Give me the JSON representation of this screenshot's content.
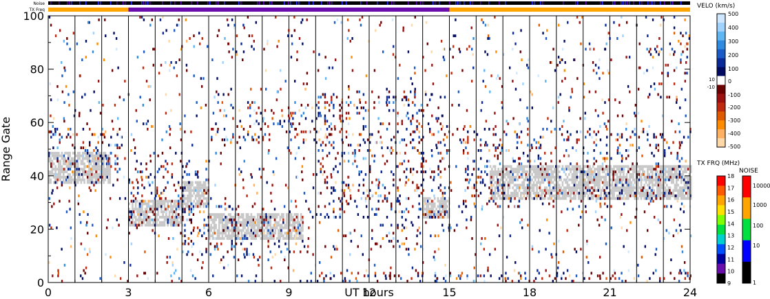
{
  "chart_data": {
    "type": "heatmap",
    "xlabel": "UT hours",
    "ylabel": "Range Gate",
    "xlim": [
      0,
      24
    ],
    "ylim": [
      0,
      100
    ],
    "x_ticks": [
      {
        "value": 0,
        "label": "0"
      },
      {
        "value": 3,
        "label": "3"
      },
      {
        "value": 6,
        "label": "6"
      },
      {
        "value": 9,
        "label": "9"
      },
      {
        "value": 12,
        "label": "12"
      },
      {
        "value": 15,
        "label": "15"
      },
      {
        "value": 18,
        "label": "18"
      },
      {
        "value": 21,
        "label": "21"
      },
      {
        "value": 24,
        "label": "24"
      }
    ],
    "y_ticks": [
      {
        "value": 0,
        "label": "0"
      },
      {
        "value": 20,
        "label": "20"
      },
      {
        "value": 40,
        "label": "40"
      },
      {
        "value": 60,
        "label": "60"
      },
      {
        "value": 80,
        "label": "80"
      },
      {
        "value": 100,
        "label": "100"
      }
    ],
    "scan_lines_ut": [
      1.0,
      2.0,
      3.0,
      4.0,
      5.0,
      6.0,
      7.0,
      8.0,
      9.0,
      10.0,
      11.0,
      12.0,
      13.0,
      14.0,
      15.0,
      16.0,
      17.0,
      18.0,
      19.0,
      20.0,
      21.0,
      22.0,
      23.0
    ],
    "strips": {
      "noise_label": "Noise",
      "txfreq_label": "TX Freq",
      "tx_freq_segments": [
        {
          "start": 0,
          "end": 3,
          "color": "#ffa500"
        },
        {
          "start": 3,
          "end": 15,
          "color": "#6a0dad"
        },
        {
          "start": 15,
          "end": 24,
          "color": "#ffa500"
        }
      ]
    },
    "ground_scatter_regions": [
      {
        "x0": 0,
        "x1": 2.3,
        "y0": 37,
        "y1": 49
      },
      {
        "x0": 3.0,
        "x1": 5.0,
        "y0": 21,
        "y1": 31
      },
      {
        "x0": 5.0,
        "x1": 6.0,
        "y0": 28,
        "y1": 38
      },
      {
        "x0": 6.0,
        "x1": 9.5,
        "y0": 16,
        "y1": 26
      },
      {
        "x0": 14.0,
        "x1": 15.0,
        "y0": 24,
        "y1": 32
      },
      {
        "x0": 16.5,
        "x1": 24,
        "y0": 31,
        "y1": 44
      }
    ],
    "echo_bands": [
      {
        "x0": 0,
        "x1": 2.8,
        "y0": 36,
        "y1": 58
      },
      {
        "x0": 3.0,
        "x1": 6.0,
        "y0": 21,
        "y1": 46
      },
      {
        "x0": 5.0,
        "x1": 9.5,
        "y0": 8,
        "y1": 29
      },
      {
        "x0": 6.0,
        "x1": 11.0,
        "y0": 52,
        "y1": 68
      },
      {
        "x0": 10.0,
        "x1": 15.0,
        "y0": 24,
        "y1": 72
      },
      {
        "x0": 12.0,
        "x1": 14.0,
        "y0": 12,
        "y1": 22
      },
      {
        "x0": 9.0,
        "x1": 24,
        "y0": 0,
        "y1": 4
      },
      {
        "x0": 15.5,
        "x1": 24,
        "y0": 28,
        "y1": 58
      },
      {
        "x0": 22.5,
        "x1": 24,
        "y0": 74,
        "y1": 100
      }
    ],
    "colorbars": [
      {
        "name": "VELO (km/s)",
        "labels": [
          "500",
          "400",
          "300",
          "200",
          "100",
          "10",
          "0",
          "-10",
          "-100",
          "-200",
          "-300",
          "-400",
          "-500"
        ],
        "colors": [
          "#cfe8ff",
          "#9fd2ff",
          "#5fb6f2",
          "#2f8be0",
          "#1a5bc8",
          "#0a2a9a",
          "#000a60",
          "#ffffff",
          "#6a0000",
          "#9c1010",
          "#c02a10",
          "#e05a00",
          "#ff8c00",
          "#ffb060",
          "#ffd8a8"
        ]
      },
      {
        "name": "TX FRQ (MHz)",
        "labels": [
          "18",
          "17",
          "16",
          "15",
          "14",
          "13",
          "12",
          "11",
          "10",
          "9"
        ],
        "colors": [
          "#ff0000",
          "#ff5a00",
          "#ffa500",
          "#ffe000",
          "#80ff00",
          "#00e040",
          "#00d0d0",
          "#0050ff",
          "#0000a0",
          "#6a0dad",
          "#000000"
        ]
      },
      {
        "name": "NOISE",
        "labels": [
          "10000",
          "1000",
          "100",
          "10",
          "1"
        ],
        "colors": [
          "#ff0000",
          "#ffa500",
          "#00e040",
          "#0000ff",
          "#000000"
        ]
      }
    ]
  }
}
